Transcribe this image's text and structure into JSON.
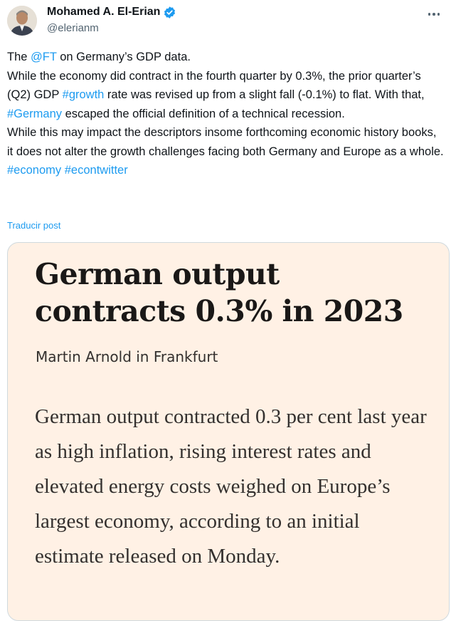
{
  "author": {
    "name": "Mohamed A. El-Erian",
    "handle": "@elerianm",
    "verified": true,
    "avatar_icon": "profile-photo"
  },
  "tweet": {
    "p1": {
      "t1": "The ",
      "mention": "@FT",
      "t2": " on Germany’s GDP data."
    },
    "p2": {
      "t1": "While the economy did contract in the fourth quarter by 0.3%, the prior quarter’s (Q2) GDP ",
      "tag_growth": "#growth",
      "t2": " rate was revised up from a slight fall (-0.1%) to flat. With that, ",
      "tag_germany": "#Germany",
      "t3": " escaped the official definition of a technical recession."
    },
    "p3": "While this may impact the descriptors insome forthcoming economic history books, it does not alter the growth challenges facing both Germany and Europe as a whole.",
    "hashtags": [
      "#economy",
      "#econtwitter"
    ]
  },
  "translate_label": "Traducir post",
  "card": {
    "headline": "German output contracts 0.3% in 2023",
    "byline": "Martin Arnold in Frankfurt",
    "body": "German output contracted 0.3 per cent last year as high inflation, rising interest rates and elevated energy costs weighed on Europe’s largest economy, according to an initial estimate released on Monday.",
    "background": "#fff1e5"
  },
  "colors": {
    "link": "#1d9bf0",
    "text": "#0f1419",
    "secondary": "#536471"
  }
}
